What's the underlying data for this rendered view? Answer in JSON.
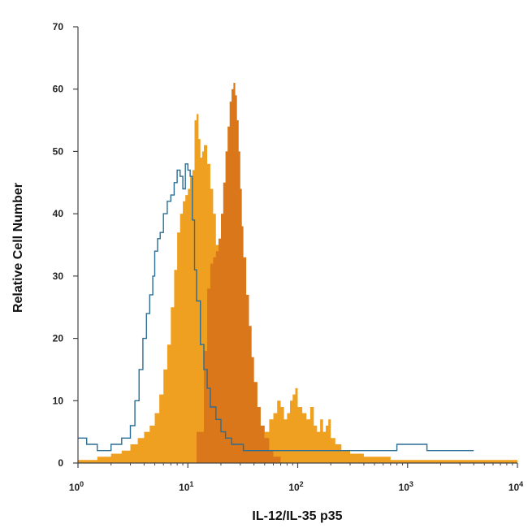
{
  "chart_data": {
    "type": "area",
    "xlabel": "IL-12/IL-35 p35",
    "ylabel": "Relative Cell Number",
    "x_scale": "log",
    "xlim": [
      1,
      10000
    ],
    "ylim": [
      0,
      70
    ],
    "x_ticks": [
      {
        "value": 1,
        "base": "10",
        "exp": "0"
      },
      {
        "value": 10,
        "base": "10",
        "exp": "1"
      },
      {
        "value": 100,
        "base": "10",
        "exp": "2"
      },
      {
        "value": 1000,
        "base": "10",
        "exp": "3"
      },
      {
        "value": 10000,
        "base": "10",
        "exp": "4"
      }
    ],
    "y_ticks": [
      "0",
      "10",
      "20",
      "30",
      "40",
      "50",
      "60",
      "70"
    ],
    "grid": false,
    "legend": false,
    "series": [
      {
        "style": "filled",
        "color": "#f0a020",
        "x": [
          1,
          1.5,
          2,
          2.5,
          3,
          3.5,
          4,
          4.5,
          5,
          5.5,
          6,
          6.5,
          7,
          7.5,
          8,
          8.5,
          9,
          9.5,
          10,
          10.5,
          11,
          11.5,
          12,
          12.5,
          13,
          13.5,
          14,
          15,
          16,
          17,
          18,
          19,
          20,
          22,
          24,
          26,
          28,
          30,
          35,
          40,
          45,
          50,
          55,
          60,
          65,
          70,
          75,
          80,
          85,
          90,
          95,
          100,
          110,
          120,
          130,
          140,
          150,
          160,
          170,
          180,
          190,
          200,
          220,
          250,
          300,
          400,
          500,
          700,
          1000,
          2000,
          4000,
          10000
        ],
        "y": [
          0.5,
          1,
          1.5,
          2,
          3,
          4,
          5,
          6,
          8,
          11,
          15,
          19,
          25,
          31,
          37,
          40,
          42,
          43,
          44,
          46,
          47,
          55,
          56,
          52,
          49,
          50,
          51,
          48,
          44,
          40,
          35,
          31,
          28,
          24,
          20,
          15,
          12,
          9,
          6,
          5,
          4,
          5,
          7,
          8,
          10,
          9,
          7,
          8,
          10,
          11,
          12,
          9,
          8,
          7,
          9,
          6,
          5,
          7,
          5,
          6,
          7,
          4,
          3,
          2,
          1.5,
          1,
          1,
          0.5,
          0.5,
          0.5,
          0.5,
          0.5
        ]
      },
      {
        "style": "filled",
        "color": "#d9771a",
        "x": [
          10,
          12,
          14,
          15,
          16,
          17,
          18,
          19,
          20,
          21,
          22,
          23,
          24,
          25,
          26,
          27,
          28,
          29,
          30,
          31,
          32,
          34,
          36,
          38,
          40,
          43,
          46,
          50,
          55,
          60,
          70
        ],
        "y": [
          0,
          5,
          18,
          28,
          32,
          33,
          34,
          36,
          40,
          45,
          50,
          54,
          58,
          60,
          61,
          59,
          55,
          50,
          44,
          38,
          33,
          27,
          22,
          17,
          13,
          9,
          6,
          4,
          2,
          1,
          0
        ]
      },
      {
        "style": "outline",
        "color": "#2a6d95",
        "x": [
          1,
          1.2,
          1.5,
          2,
          2.5,
          3,
          3.3,
          3.6,
          3.9,
          4.2,
          4.5,
          4.8,
          5,
          5.3,
          5.6,
          6,
          6.5,
          7,
          7.5,
          8,
          8.5,
          9,
          9.5,
          10,
          10.5,
          11,
          11.5,
          12,
          13,
          14,
          15,
          16,
          18,
          20,
          22,
          25,
          28,
          32,
          36,
          40,
          50,
          60,
          80,
          100,
          150,
          200,
          300,
          500,
          800,
          1000,
          1500,
          2000,
          3000,
          4000
        ],
        "y": [
          4,
          3,
          2,
          3,
          4,
          6,
          10,
          15,
          20,
          24,
          27,
          30,
          34,
          36,
          37,
          40,
          42,
          43,
          45,
          47,
          46,
          44,
          48,
          47,
          46,
          39,
          31,
          26,
          19,
          15,
          12,
          9,
          7,
          5,
          4,
          3,
          3,
          2,
          2,
          2,
          2,
          2,
          2,
          2,
          2,
          2,
          2,
          2,
          3,
          3,
          2,
          2,
          2,
          2
        ]
      }
    ]
  }
}
